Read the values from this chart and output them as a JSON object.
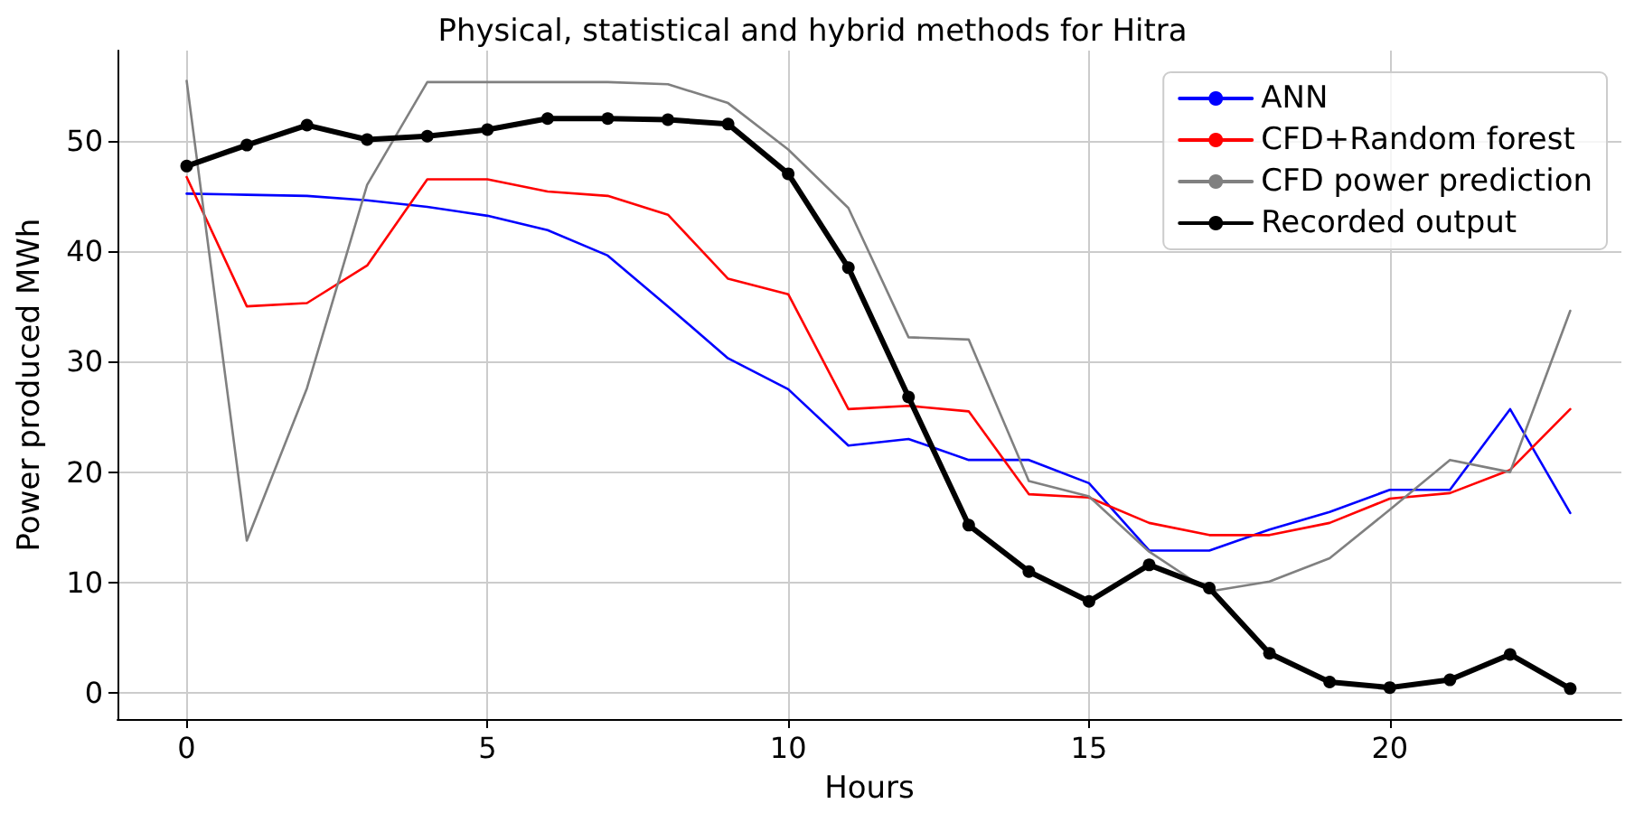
{
  "chart_data": {
    "type": "line",
    "title": "Physical, statistical and hybrid methods for Hitra",
    "xlabel": "Hours",
    "ylabel": "Power produced MWh",
    "x": [
      0,
      1,
      2,
      3,
      4,
      5,
      6,
      7,
      8,
      9,
      10,
      11,
      12,
      13,
      14,
      15,
      16,
      17,
      18,
      19,
      20,
      21,
      22,
      23
    ],
    "series": [
      {
        "name": "ANN",
        "color": "#0000ff",
        "marker": "none",
        "values": [
          45.2,
          45.1,
          45.0,
          44.6,
          44.0,
          43.2,
          41.9,
          39.6,
          35.0,
          30.3,
          27.5,
          22.4,
          23.0,
          21.1,
          21.1,
          19.0,
          12.9,
          12.9,
          14.8,
          16.4,
          18.4,
          18.4,
          25.7,
          16.3
        ]
      },
      {
        "name": "CFD+Random forest",
        "color": "#ff0000",
        "marker": "none",
        "values": [
          46.7,
          35.0,
          35.3,
          38.7,
          46.5,
          46.5,
          45.4,
          45.0,
          43.3,
          37.5,
          36.1,
          25.7,
          26.0,
          25.5,
          18.0,
          17.7,
          15.4,
          14.3,
          14.3,
          15.4,
          17.6,
          18.1,
          20.2,
          25.7
        ]
      },
      {
        "name": "CFD power prediction",
        "color": "#808080",
        "marker": "none",
        "values": [
          55.4,
          13.8,
          27.6,
          46.0,
          55.3,
          55.3,
          55.3,
          55.3,
          55.1,
          53.4,
          49.2,
          43.9,
          32.2,
          32.0,
          19.2,
          17.8,
          12.8,
          9.2,
          10.1,
          12.2,
          16.6,
          21.1,
          20.0,
          34.6
        ]
      },
      {
        "name": "Recorded output",
        "color": "#000000",
        "marker": "circle",
        "values": [
          47.7,
          49.6,
          51.4,
          50.1,
          50.4,
          51.0,
          52.0,
          52.0,
          51.9,
          51.5,
          47.0,
          38.5,
          26.8,
          15.2,
          11.0,
          8.3,
          11.6,
          9.5,
          3.6,
          1.0,
          0.5,
          1.2,
          3.5,
          0.4
        ]
      }
    ],
    "xlim": [
      -1.15,
      23.85
    ],
    "xticks": [
      0,
      5,
      10,
      15,
      20
    ],
    "ylim": [
      -2.35,
      58.15
    ],
    "yticks": [
      0,
      10,
      20,
      30,
      40,
      50
    ],
    "grid": true,
    "legend": "top right",
    "line_style": "solid"
  }
}
